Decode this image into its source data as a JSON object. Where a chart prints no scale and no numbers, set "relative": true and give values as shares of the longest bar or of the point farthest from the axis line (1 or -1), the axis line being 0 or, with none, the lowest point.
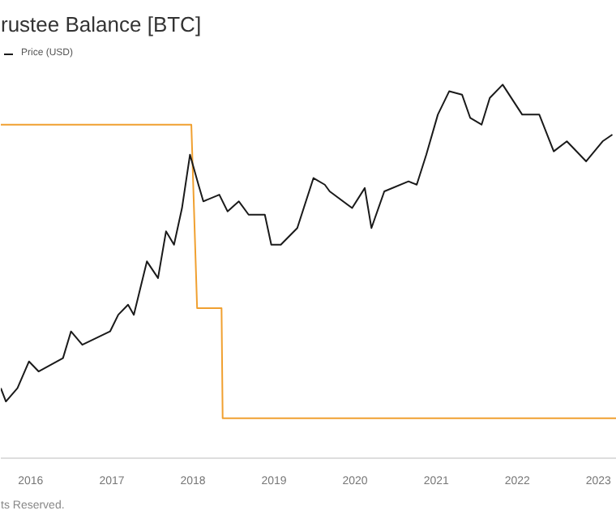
{
  "chart_data": {
    "type": "line",
    "title": "rustee Balance [BTC]",
    "relative": true,
    "legend": "top left",
    "annotations": [
      "ts Reserved."
    ],
    "xlim": [
      "2015-08-20",
      "2023-03-25"
    ],
    "xticks": [
      {
        "value": "2016-01-01",
        "label": "2016"
      },
      {
        "value": "2017-01-01",
        "label": "2017"
      },
      {
        "value": "2018-01-01",
        "label": "2018"
      },
      {
        "value": "2019-01-01",
        "label": "2019"
      },
      {
        "value": "2020-01-01",
        "label": "2020"
      },
      {
        "value": "2021-01-01",
        "label": "2021"
      },
      {
        "value": "2022-01-01",
        "label": "2022"
      },
      {
        "value": "2023-01-01",
        "label": "2023"
      }
    ],
    "series": [
      {
        "color": "#f0a030",
        "x": [
          "2015-08-20",
          "2017-12-25",
          "2018-01-20",
          "2018-05-10",
          "2018-05-15",
          "2023-03-25"
        ],
        "values": [
          0.88,
          0.88,
          0.33,
          0.33,
          0,
          0
        ]
      },
      {
        "name": "Price (USD)",
        "color": "#1a1a1a",
        "x": [
          "2015-08-20",
          "2015-09-12",
          "2015-11-03",
          "2015-12-25",
          "2016-02-06",
          "2016-05-26",
          "2016-07-01",
          "2016-08-21",
          "2016-12-24",
          "2017-01-30",
          "2017-03-15",
          "2017-04-10",
          "2017-06-08",
          "2017-07-28",
          "2017-09-02",
          "2017-10-08",
          "2017-11-13",
          "2017-12-19",
          "2018-01-26",
          "2018-02-17",
          "2018-04-30",
          "2018-06-06",
          "2018-07-27",
          "2018-09-09",
          "2018-11-21",
          "2018-12-20",
          "2019-02-01",
          "2019-04-16",
          "2019-06-28",
          "2019-08-18",
          "2019-09-09",
          "2019-12-19",
          "2020-02-14",
          "2020-03-15",
          "2020-05-12",
          "2020-08-29",
          "2020-10-05",
          "2020-11-17",
          "2021-01-08",
          "2021-02-28",
          "2021-04-27",
          "2021-06-03",
          "2021-07-24",
          "2021-08-30",
          "2021-10-27",
          "2022-01-23",
          "2022-04-10",
          "2022-06-14",
          "2022-08-12",
          "2022-11-07",
          "2023-01-20",
          "2023-03-05"
        ],
        "values": [
          0.09,
          0.05,
          0.09,
          0.17,
          0.14,
          0.18,
          0.26,
          0.22,
          0.26,
          0.31,
          0.34,
          0.31,
          0.47,
          0.42,
          0.56,
          0.52,
          0.63,
          0.79,
          0.7,
          0.65,
          0.67,
          0.62,
          0.65,
          0.61,
          0.61,
          0.52,
          0.52,
          0.57,
          0.72,
          0.7,
          0.68,
          0.63,
          0.69,
          0.57,
          0.68,
          0.71,
          0.7,
          0.79,
          0.91,
          0.98,
          0.97,
          0.9,
          0.88,
          0.96,
          1,
          0.91,
          0.91,
          0.8,
          0.83,
          0.77,
          0.83,
          0.85
        ]
      }
    ]
  }
}
